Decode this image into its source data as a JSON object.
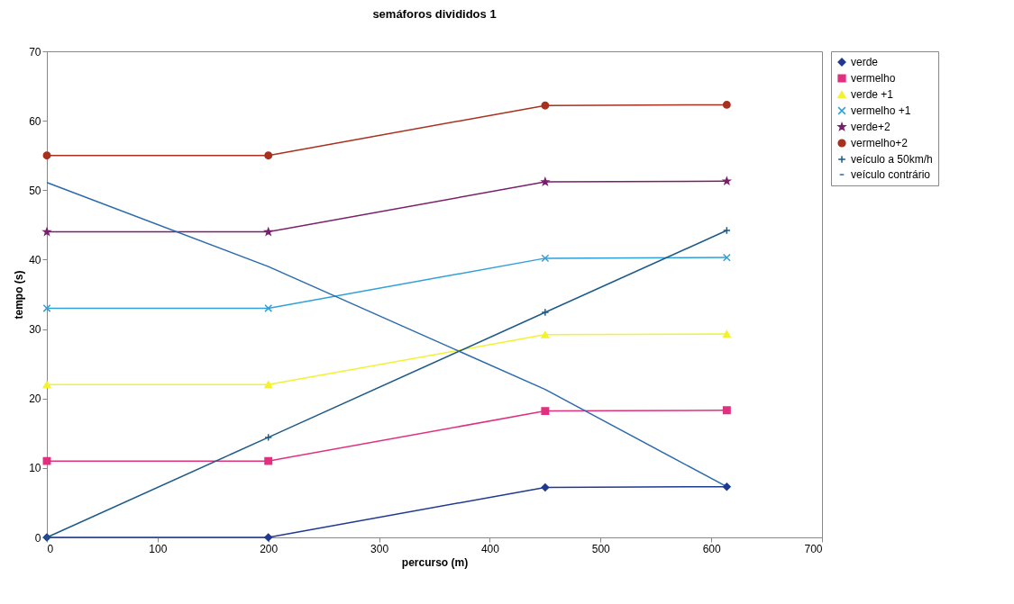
{
  "chart_data": {
    "type": "line",
    "title": "semáforos divididos 1",
    "xlabel": "percurso (m)",
    "ylabel": "tempo (s)",
    "x": [
      0,
      200,
      450,
      614
    ],
    "series": [
      {
        "name": "verde",
        "color": "#1f3a8f",
        "marker": "diamond",
        "values": [
          0,
          0,
          7.2,
          7.3
        ]
      },
      {
        "name": "vermelho",
        "color": "#e0307f",
        "marker": "square",
        "values": [
          11,
          11,
          18.2,
          18.3
        ]
      },
      {
        "name": "verde +1",
        "color": "#f2f230",
        "marker": "triangle",
        "values": [
          22,
          22,
          29.2,
          29.3
        ]
      },
      {
        "name": "vermelho +1",
        "color": "#30a0d8",
        "marker": "x",
        "values": [
          33,
          33,
          40.2,
          40.3
        ]
      },
      {
        "name": "verde+2",
        "color": "#7a1f6a",
        "marker": "star",
        "values": [
          44,
          44,
          51.2,
          51.3
        ]
      },
      {
        "name": "vermelho+2",
        "color": "#a8301e",
        "marker": "circle",
        "values": [
          55,
          55,
          62.2,
          62.3
        ]
      },
      {
        "name": "veículo a 50km/h",
        "color": "#1e5a88",
        "marker": "cross",
        "values": [
          0,
          14.4,
          32.4,
          44.2
        ]
      },
      {
        "name": "veículo contrário",
        "color": "#2a6aad",
        "marker": "none",
        "values": [
          51.1,
          39,
          21.3,
          7.3
        ]
      }
    ],
    "xlim": [
      0,
      700
    ],
    "xticks": [
      0,
      100,
      200,
      300,
      400,
      500,
      600,
      700
    ],
    "ylim": [
      0,
      70
    ],
    "yticks": [
      0,
      10,
      20,
      30,
      40,
      50,
      60,
      70
    ],
    "grid": false,
    "legend": "right",
    "line_style": "solid"
  }
}
